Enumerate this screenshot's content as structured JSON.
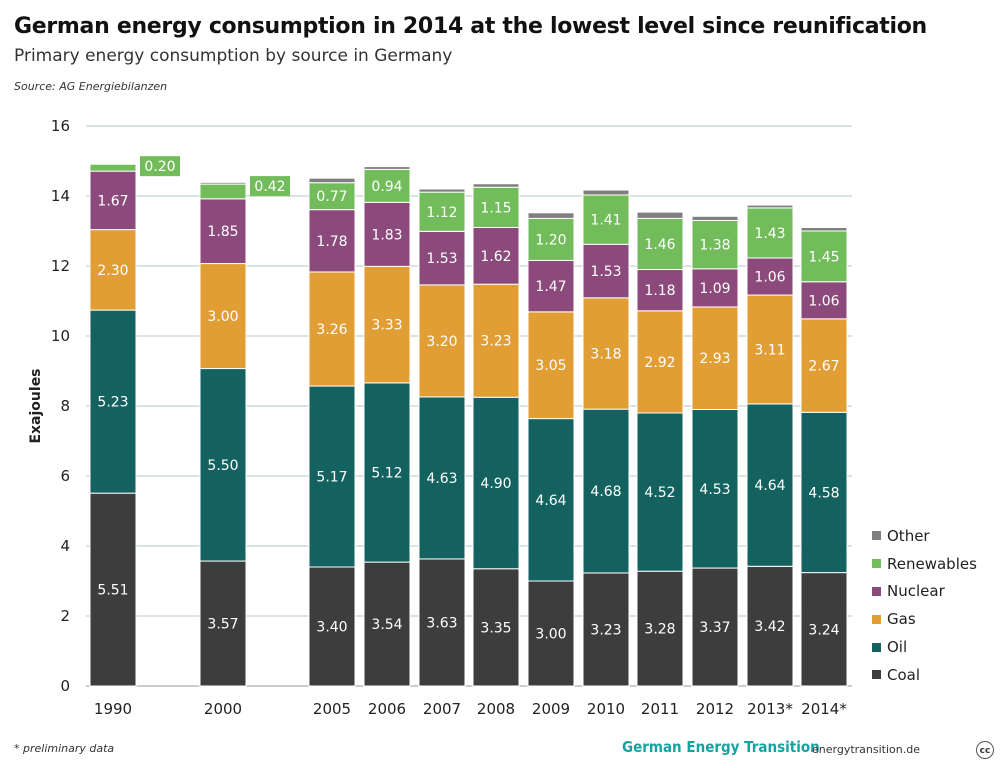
{
  "header": {
    "title": "German energy consumption in 2014 at the lowest level since reunification",
    "subtitle": "Primary energy consumption by source in Germany",
    "source": "Source: AG Energiebilanzen"
  },
  "footer": {
    "note": "* preliminary data",
    "brand": "German Energy Transition",
    "site": "energytransition.de",
    "license": "cc"
  },
  "chart_data": {
    "type": "bar",
    "stacked": true,
    "categories": [
      "1990",
      "2000",
      "2005",
      "2006",
      "2007",
      "2008",
      "2009",
      "2010",
      "2011",
      "2012",
      "2013*",
      "2014*"
    ],
    "ylabel": "Exajoules",
    "ylim": [
      0,
      16
    ],
    "yticks": [
      0,
      2,
      4,
      6,
      8,
      10,
      12,
      14,
      16
    ],
    "grid": true,
    "legend_position": "right",
    "series": [
      {
        "name": "Coal",
        "color": "#3d3d3d",
        "values": [
          5.51,
          3.57,
          3.4,
          3.54,
          3.63,
          3.35,
          3.0,
          3.23,
          3.28,
          3.37,
          3.42,
          3.24
        ],
        "labels": [
          "5.51",
          "3.57",
          "3.40",
          "3.54",
          "3.63",
          "3.35",
          "3.00",
          "3.23",
          "3.28",
          "3.37",
          "3.42",
          "3.24"
        ]
      },
      {
        "name": "Oil",
        "color": "#136260",
        "values": [
          5.23,
          5.5,
          5.17,
          5.12,
          4.63,
          4.9,
          4.64,
          4.68,
          4.52,
          4.53,
          4.64,
          4.58
        ],
        "labels": [
          "5.23",
          "5.50",
          "5.17",
          "5.12",
          "4.63",
          "4.90",
          "4.64",
          "4.68",
          "4.52",
          "4.53",
          "4.64",
          "4.58"
        ]
      },
      {
        "name": "Gas",
        "color": "#e19e35",
        "values": [
          2.3,
          3.0,
          3.26,
          3.33,
          3.2,
          3.23,
          3.05,
          3.18,
          2.92,
          2.93,
          3.11,
          2.67
        ],
        "labels": [
          "2.30",
          "3.00",
          "3.26",
          "3.33",
          "3.20",
          "3.23",
          "3.05",
          "3.18",
          "2.92",
          "2.93",
          "3.11",
          "2.67"
        ]
      },
      {
        "name": "Nuclear",
        "color": "#8c4a7c",
        "values": [
          1.67,
          1.85,
          1.78,
          1.83,
          1.53,
          1.62,
          1.47,
          1.53,
          1.18,
          1.09,
          1.06,
          1.06
        ],
        "labels": [
          "1.67",
          "1.85",
          "1.78",
          "1.83",
          "1.53",
          "1.62",
          "1.47",
          "1.53",
          "1.18",
          "1.09",
          "1.06",
          "1.06"
        ]
      },
      {
        "name": "Renewables",
        "color": "#72bc5b",
        "values": [
          0.2,
          0.42,
          0.77,
          0.94,
          1.12,
          1.15,
          1.2,
          1.41,
          1.46,
          1.38,
          1.43,
          1.45
        ],
        "labels": [
          "0.20",
          "0.42",
          "0.77",
          "0.94",
          "1.12",
          "1.15",
          "1.20",
          "1.41",
          "1.46",
          "1.38",
          "1.43",
          "1.45"
        ]
      },
      {
        "name": "Other",
        "color": "#7f7f7f",
        "values": [
          0.02,
          0.05,
          0.13,
          0.08,
          0.09,
          0.1,
          0.16,
          0.14,
          0.18,
          0.12,
          0.08,
          0.1
        ]
      }
    ],
    "outside_labels": [
      0,
      1
    ]
  }
}
